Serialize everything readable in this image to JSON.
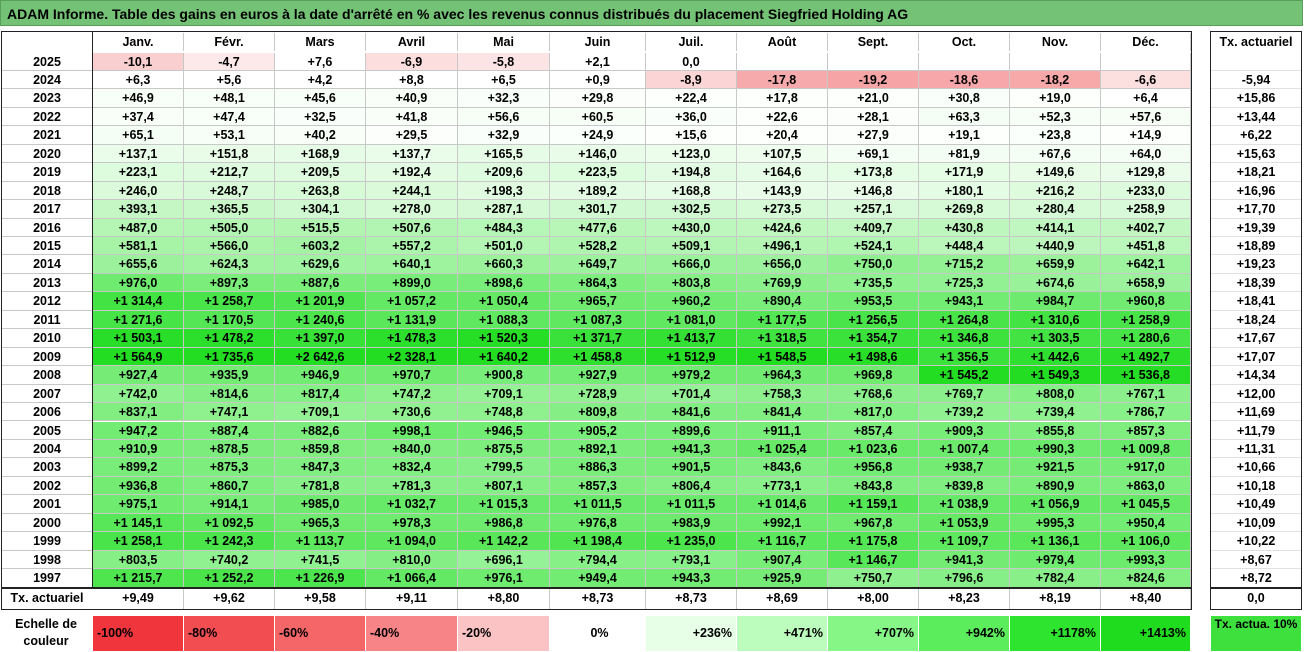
{
  "title": "ADAM Informe. Table des gains en euros à la date d'arrêté en % avec les revenus connus distribués du placement Siegfried Holding AG",
  "chart_data": {
    "type": "heatmap",
    "columns": [
      "Janv.",
      "Févr.",
      "Mars",
      "Avril",
      "Mai",
      "Juin",
      "Juil.",
      "Août",
      "Sept.",
      "Oct.",
      "Nov.",
      "Déc."
    ],
    "actuarial_header": "Tx. actuariel",
    "rows": [
      {
        "year": "2025",
        "values": [
          "-10,1",
          "-4,7",
          "+7,6",
          "-6,9",
          "-5,8",
          "+2,1",
          "0,0",
          "",
          "",
          "",
          "",
          ""
        ],
        "rate": ""
      },
      {
        "year": "2024",
        "values": [
          "+6,3",
          "+5,6",
          "+4,2",
          "+8,8",
          "+6,5",
          "+0,9",
          "-8,9",
          "-17,8",
          "-19,2",
          "-18,6",
          "-18,2",
          "-6,6"
        ],
        "rate": "-5,94"
      },
      {
        "year": "2023",
        "values": [
          "+46,9",
          "+48,1",
          "+45,6",
          "+40,9",
          "+32,3",
          "+29,8",
          "+22,4",
          "+17,8",
          "+21,0",
          "+30,8",
          "+19,0",
          "+6,4"
        ],
        "rate": "+15,86"
      },
      {
        "year": "2022",
        "values": [
          "+37,4",
          "+47,4",
          "+32,5",
          "+41,8",
          "+56,6",
          "+60,5",
          "+36,0",
          "+22,6",
          "+28,1",
          "+63,3",
          "+52,3",
          "+57,6"
        ],
        "rate": "+13,44"
      },
      {
        "year": "2021",
        "values": [
          "+65,1",
          "+53,1",
          "+40,2",
          "+29,5",
          "+32,9",
          "+24,9",
          "+15,6",
          "+20,4",
          "+27,9",
          "+19,1",
          "+23,8",
          "+14,9"
        ],
        "rate": "+6,22"
      },
      {
        "year": "2020",
        "values": [
          "+137,1",
          "+151,8",
          "+168,9",
          "+137,7",
          "+165,5",
          "+146,0",
          "+123,0",
          "+107,5",
          "+69,1",
          "+81,9",
          "+67,6",
          "+64,0"
        ],
        "rate": "+15,63"
      },
      {
        "year": "2019",
        "values": [
          "+223,1",
          "+212,7",
          "+209,5",
          "+192,4",
          "+209,6",
          "+223,5",
          "+194,8",
          "+164,6",
          "+173,8",
          "+171,9",
          "+149,6",
          "+129,8"
        ],
        "rate": "+18,21"
      },
      {
        "year": "2018",
        "values": [
          "+246,0",
          "+248,7",
          "+263,8",
          "+244,1",
          "+198,3",
          "+189,2",
          "+168,8",
          "+143,9",
          "+146,8",
          "+180,1",
          "+216,2",
          "+233,0"
        ],
        "rate": "+16,96"
      },
      {
        "year": "2017",
        "values": [
          "+393,1",
          "+365,5",
          "+304,1",
          "+278,0",
          "+287,1",
          "+301,7",
          "+302,5",
          "+273,5",
          "+257,1",
          "+269,8",
          "+280,4",
          "+258,9"
        ],
        "rate": "+17,70"
      },
      {
        "year": "2016",
        "values": [
          "+487,0",
          "+505,0",
          "+515,5",
          "+507,6",
          "+484,3",
          "+477,6",
          "+430,0",
          "+424,6",
          "+409,7",
          "+430,8",
          "+414,1",
          "+402,7"
        ],
        "rate": "+19,39"
      },
      {
        "year": "2015",
        "values": [
          "+581,1",
          "+566,0",
          "+603,2",
          "+557,2",
          "+501,0",
          "+528,2",
          "+509,1",
          "+496,1",
          "+524,1",
          "+448,4",
          "+440,9",
          "+451,8"
        ],
        "rate": "+18,89"
      },
      {
        "year": "2014",
        "values": [
          "+655,6",
          "+624,3",
          "+629,6",
          "+640,1",
          "+660,3",
          "+649,7",
          "+666,0",
          "+656,0",
          "+750,0",
          "+715,2",
          "+659,9",
          "+642,1"
        ],
        "rate": "+19,23"
      },
      {
        "year": "2013",
        "values": [
          "+976,0",
          "+897,3",
          "+887,6",
          "+899,0",
          "+898,6",
          "+864,3",
          "+803,8",
          "+769,9",
          "+735,5",
          "+725,3",
          "+674,6",
          "+658,9"
        ],
        "rate": "+18,39"
      },
      {
        "year": "2012",
        "values": [
          "+1 314,4",
          "+1 258,7",
          "+1 201,9",
          "+1 057,2",
          "+1 050,4",
          "+965,7",
          "+960,2",
          "+890,4",
          "+953,5",
          "+943,1",
          "+984,7",
          "+960,8"
        ],
        "rate": "+18,41"
      },
      {
        "year": "2011",
        "values": [
          "+1 271,6",
          "+1 170,5",
          "+1 240,6",
          "+1 131,9",
          "+1 088,3",
          "+1 087,3",
          "+1 081,0",
          "+1 177,5",
          "+1 256,5",
          "+1 264,8",
          "+1 310,6",
          "+1 258,9"
        ],
        "rate": "+18,24"
      },
      {
        "year": "2010",
        "values": [
          "+1 503,1",
          "+1 478,2",
          "+1 397,0",
          "+1 478,3",
          "+1 520,3",
          "+1 371,7",
          "+1 413,7",
          "+1 318,5",
          "+1 354,7",
          "+1 346,8",
          "+1 303,5",
          "+1 280,6"
        ],
        "rate": "+17,67"
      },
      {
        "year": "2009",
        "values": [
          "+1 564,9",
          "+1 735,6",
          "+2 642,6",
          "+2 328,1",
          "+1 640,2",
          "+1 458,8",
          "+1 512,9",
          "+1 548,5",
          "+1 498,6",
          "+1 356,5",
          "+1 442,6",
          "+1 492,7"
        ],
        "rate": "+17,07"
      },
      {
        "year": "2008",
        "values": [
          "+927,4",
          "+935,9",
          "+946,9",
          "+970,7",
          "+900,8",
          "+927,9",
          "+979,2",
          "+964,3",
          "+969,8",
          "+1 545,2",
          "+1 549,3",
          "+1 536,8"
        ],
        "rate": "+14,34"
      },
      {
        "year": "2007",
        "values": [
          "+742,0",
          "+814,6",
          "+817,4",
          "+747,2",
          "+709,1",
          "+728,9",
          "+701,4",
          "+758,3",
          "+768,6",
          "+769,7",
          "+808,0",
          "+767,1"
        ],
        "rate": "+12,00"
      },
      {
        "year": "2006",
        "values": [
          "+837,1",
          "+747,1",
          "+709,1",
          "+730,6",
          "+748,8",
          "+809,8",
          "+841,6",
          "+841,4",
          "+817,0",
          "+739,2",
          "+739,4",
          "+786,7"
        ],
        "rate": "+11,69"
      },
      {
        "year": "2005",
        "values": [
          "+947,2",
          "+887,4",
          "+882,6",
          "+998,1",
          "+946,5",
          "+905,2",
          "+899,6",
          "+911,1",
          "+857,4",
          "+909,3",
          "+855,8",
          "+857,3"
        ],
        "rate": "+11,79"
      },
      {
        "year": "2004",
        "values": [
          "+910,9",
          "+878,5",
          "+859,8",
          "+840,0",
          "+875,5",
          "+892,1",
          "+941,3",
          "+1 025,4",
          "+1 023,6",
          "+1 007,4",
          "+990,3",
          "+1 009,8"
        ],
        "rate": "+11,31"
      },
      {
        "year": "2003",
        "values": [
          "+899,2",
          "+875,3",
          "+847,3",
          "+832,4",
          "+799,5",
          "+886,3",
          "+901,5",
          "+843,6",
          "+956,8",
          "+938,7",
          "+921,5",
          "+917,0"
        ],
        "rate": "+10,66"
      },
      {
        "year": "2002",
        "values": [
          "+936,8",
          "+860,7",
          "+781,8",
          "+781,3",
          "+807,1",
          "+857,3",
          "+806,4",
          "+773,1",
          "+843,8",
          "+839,8",
          "+890,9",
          "+863,0"
        ],
        "rate": "+10,18"
      },
      {
        "year": "2001",
        "values": [
          "+975,1",
          "+914,1",
          "+985,0",
          "+1 032,7",
          "+1 015,3",
          "+1 011,5",
          "+1 011,5",
          "+1 014,6",
          "+1 159,1",
          "+1 038,9",
          "+1 056,9",
          "+1 045,5"
        ],
        "rate": "+10,49"
      },
      {
        "year": "2000",
        "values": [
          "+1 145,1",
          "+1 092,5",
          "+965,3",
          "+978,3",
          "+986,8",
          "+976,8",
          "+983,9",
          "+992,1",
          "+967,8",
          "+1 053,9",
          "+995,3",
          "+950,4"
        ],
        "rate": "+10,09"
      },
      {
        "year": "1999",
        "values": [
          "+1 258,1",
          "+1 242,3",
          "+1 113,7",
          "+1 094,0",
          "+1 142,2",
          "+1 198,4",
          "+1 235,0",
          "+1 116,7",
          "+1 175,8",
          "+1 109,7",
          "+1 136,1",
          "+1 106,0"
        ],
        "rate": "+10,22"
      },
      {
        "year": "1998",
        "values": [
          "+803,5",
          "+740,2",
          "+741,5",
          "+810,0",
          "+696,1",
          "+794,4",
          "+793,1",
          "+907,4",
          "+1 146,7",
          "+941,3",
          "+979,4",
          "+993,3"
        ],
        "rate": "+8,67"
      },
      {
        "year": "1997",
        "values": [
          "+1 215,7",
          "+1 252,2",
          "+1 226,9",
          "+1 066,4",
          "+976,1",
          "+949,4",
          "+943,3",
          "+925,9",
          "+750,7",
          "+796,6",
          "+782,4",
          "+824,6"
        ],
        "rate": "+8,72"
      }
    ],
    "footer": {
      "label": "Tx. actuariel",
      "values": [
        "+9,49",
        "+9,62",
        "+9,58",
        "+9,11",
        "+8,80",
        "+8,73",
        "+8,73",
        "+8,69",
        "+8,00",
        "+8,23",
        "+8,19",
        "+8,40"
      ],
      "rate": "0,0"
    }
  },
  "scale": {
    "label": "Echelle de couleur",
    "steps": [
      {
        "text": "-100%",
        "color": "#f0363c"
      },
      {
        "text": "-80%",
        "color": "#f24d50"
      },
      {
        "text": "-60%",
        "color": "#f46668"
      },
      {
        "text": "-40%",
        "color": "#f78486"
      },
      {
        "text": "-20%",
        "color": "#fbc3c3"
      },
      {
        "text": "0%",
        "color": "#ffffff"
      },
      {
        "text": "+236%",
        "color": "#e6ffe6"
      },
      {
        "text": "+471%",
        "color": "#bcfcbc"
      },
      {
        "text": "+707%",
        "color": "#86f786"
      },
      {
        "text": "+942%",
        "color": "#5ced5c"
      },
      {
        "text": "+1178%",
        "color": "#2ee42e"
      },
      {
        "text": "+1413%",
        "color": "#1fdc1f"
      }
    ],
    "rate_label": "Tx. actua. 10%",
    "rate_color": "#3ee03e"
  }
}
